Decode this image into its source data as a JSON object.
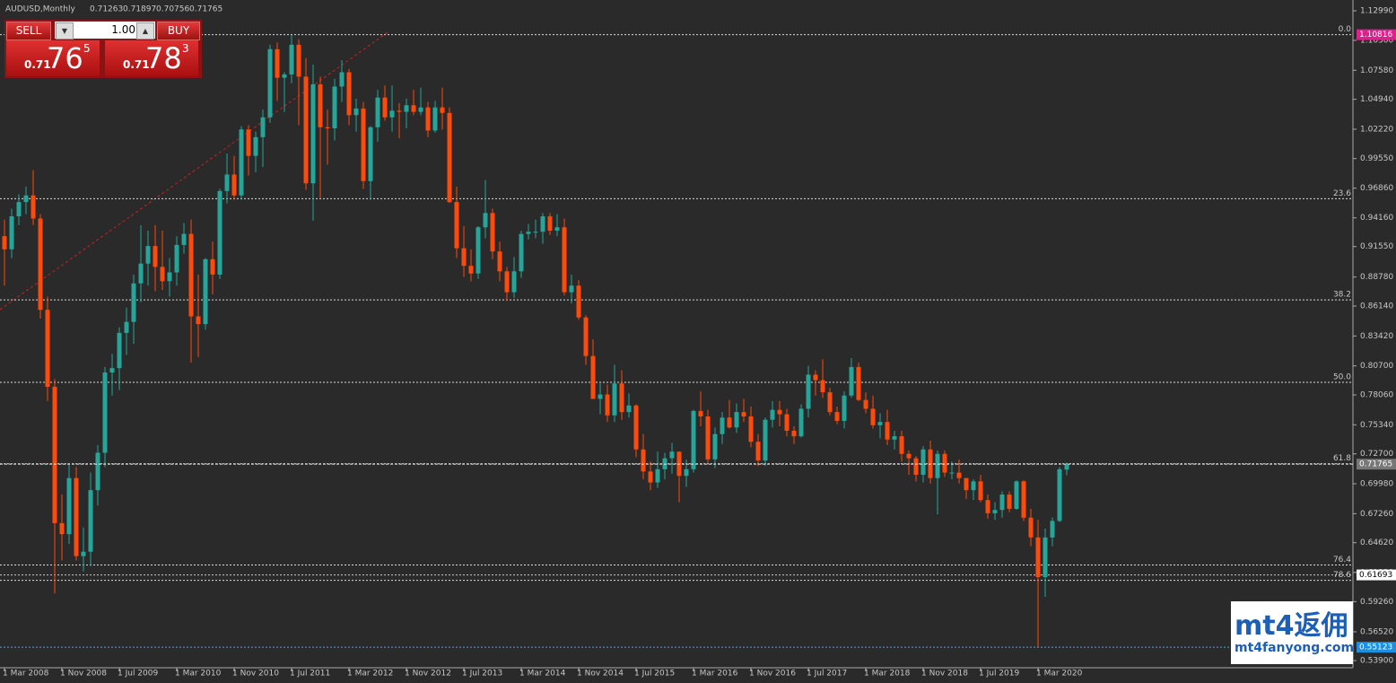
{
  "chart_data": {
    "type": "candlestick",
    "title": "AUDUSD,Monthly",
    "up_color": "#26a69a",
    "down_color": "#ff4a0a",
    "ylim": [
      0.5317,
      1.1397
    ],
    "yticks": [
      {
        "value": 1.1299,
        "label": "1.12990"
      },
      {
        "value": 1.103,
        "label": "1.10300"
      },
      {
        "value": 1.0758,
        "label": "1.07580"
      },
      {
        "value": 1.0494,
        "label": "1.04940"
      },
      {
        "value": 1.0222,
        "label": "1.02220"
      },
      {
        "value": 0.9955,
        "label": "0.99550"
      },
      {
        "value": 0.9686,
        "label": "0.96860"
      },
      {
        "value": 0.9416,
        "label": "0.94160"
      },
      {
        "value": 0.9155,
        "label": "0.91550"
      },
      {
        "value": 0.8878,
        "label": "0.88780"
      },
      {
        "value": 0.8614,
        "label": "0.86140"
      },
      {
        "value": 0.8342,
        "label": "0.83420"
      },
      {
        "value": 0.807,
        "label": "0.80700"
      },
      {
        "value": 0.7806,
        "label": "0.78060"
      },
      {
        "value": 0.7534,
        "label": "0.75340"
      },
      {
        "value": 0.727,
        "label": "0.72700"
      },
      {
        "value": 0.6998,
        "label": "0.69980"
      },
      {
        "value": 0.6726,
        "label": "0.67260"
      },
      {
        "value": 0.6462,
        "label": "0.64620"
      },
      {
        "value": 0.6192,
        "label": "0.61920"
      },
      {
        "value": 0.5926,
        "label": "0.59260"
      },
      {
        "value": 0.5652,
        "label": "0.56520"
      },
      {
        "value": 0.539,
        "label": "0.53900"
      }
    ],
    "categories": [
      "1 Mar 2008",
      null,
      null,
      null,
      null,
      null,
      null,
      null,
      "1 Nov 2008",
      null,
      null,
      null,
      null,
      null,
      null,
      null,
      "1 Jul 2009",
      null,
      null,
      null,
      null,
      null,
      null,
      null,
      "1 Mar 2010",
      null,
      null,
      null,
      null,
      null,
      null,
      null,
      "1 Nov 2010",
      null,
      null,
      null,
      null,
      null,
      null,
      null,
      "1 Jul 2011",
      null,
      null,
      null,
      null,
      null,
      null,
      null,
      "1 Mar 2012",
      null,
      null,
      null,
      null,
      null,
      null,
      null,
      "1 Nov 2012",
      null,
      null,
      null,
      null,
      null,
      null,
      null,
      "1 Jul 2013",
      null,
      null,
      null,
      null,
      null,
      null,
      null,
      "1 Mar 2014",
      null,
      null,
      null,
      null,
      null,
      null,
      null,
      "1 Nov 2014",
      null,
      null,
      null,
      null,
      null,
      null,
      null,
      "1 Jul 2015",
      null,
      null,
      null,
      null,
      null,
      null,
      null,
      "1 Mar 2016",
      null,
      null,
      null,
      null,
      null,
      null,
      null,
      "1 Nov 2016",
      null,
      null,
      null,
      null,
      null,
      null,
      null,
      "1 Jul 2017",
      null,
      null,
      null,
      null,
      null,
      null,
      null,
      "1 Mar 2018",
      null,
      null,
      null,
      null,
      null,
      null,
      null,
      "1 Nov 2018",
      null,
      null,
      null,
      null,
      null,
      null,
      null,
      "1 Jul 2019",
      null,
      null,
      null,
      null,
      null,
      null,
      null,
      "1 Mar 2020",
      null,
      null,
      null,
      null
    ],
    "open": [
      0.925,
      0.913,
      0.943,
      0.956,
      0.962,
      0.941,
      0.858,
      0.788,
      0.664,
      0.654,
      0.705,
      0.634,
      0.638,
      0.694,
      0.728,
      0.801,
      0.805,
      0.837,
      0.847,
      0.882,
      0.9,
      0.916,
      0.897,
      0.884,
      0.892,
      0.917,
      0.927,
      0.852,
      0.845,
      0.904,
      0.89,
      0.966,
      0.981,
      0.962,
      1.022,
      0.998,
      1.015,
      1.033,
      1.095,
      1.069,
      1.072,
      1.099,
      1.07,
      0.973,
      1.063,
      1.024,
      1.023,
      1.061,
      1.074,
      1.035,
      1.041,
      0.975,
      1.024,
      1.051,
      1.033,
      1.039,
      1.038,
      1.044,
      1.038,
      1.042,
      1.021,
      1.042,
      1.037,
      0.956,
      0.914,
      0.898,
      0.891,
      0.933,
      0.946,
      0.911,
      0.893,
      0.874,
      0.893,
      0.927,
      0.929,
      0.929,
      0.943,
      0.93,
      0.933,
      0.874,
      0.88,
      0.851,
      0.816,
      0.777,
      0.781,
      0.762,
      0.791,
      0.765,
      0.771,
      0.731,
      0.711,
      0.701,
      0.713,
      0.723,
      0.729,
      0.707,
      0.713,
      0.766,
      0.761,
      0.722,
      0.745,
      0.76,
      0.751,
      0.765,
      0.761,
      0.738,
      0.721,
      0.758,
      0.767,
      0.763,
      0.748,
      0.743,
      0.768,
      0.799,
      0.794,
      0.783,
      0.765,
      0.757,
      0.78,
      0.806,
      0.776,
      0.768,
      0.753,
      0.756,
      0.74,
      0.743,
      0.727,
      0.723,
      0.708,
      0.731,
      0.705,
      0.727,
      0.71,
      0.71,
      0.705,
      0.694,
      0.702,
      0.685,
      0.673,
      0.676,
      0.69,
      0.677,
      0.702,
      0.669,
      0.651,
      0.615,
      0.651,
      0.666,
      0.71263
    ],
    "high": [
      0.94,
      0.95,
      0.963,
      0.97,
      0.985,
      0.945,
      0.87,
      0.795,
      0.69,
      0.718,
      0.715,
      0.66,
      0.71,
      0.735,
      0.806,
      0.818,
      0.842,
      0.86,
      0.89,
      0.935,
      0.93,
      0.935,
      0.93,
      0.905,
      0.925,
      0.937,
      0.94,
      0.89,
      0.905,
      0.92,
      0.968,
      1.0,
      0.998,
      1.025,
      1.026,
      1.02,
      1.04,
      1.099,
      1.101,
      1.074,
      1.108,
      1.104,
      1.087,
      1.081,
      1.07,
      1.04,
      1.068,
      1.085,
      1.077,
      1.05,
      1.047,
      1.025,
      1.058,
      1.062,
      1.062,
      1.046,
      1.05,
      1.058,
      1.06,
      1.047,
      1.048,
      1.06,
      1.042,
      0.97,
      0.934,
      0.913,
      0.934,
      0.976,
      0.95,
      0.92,
      0.897,
      0.906,
      0.93,
      0.936,
      0.94,
      0.946,
      0.946,
      0.945,
      0.941,
      0.89,
      0.885,
      0.853,
      0.831,
      0.791,
      0.79,
      0.808,
      0.803,
      0.782,
      0.772,
      0.745,
      0.72,
      0.729,
      0.728,
      0.737,
      0.729,
      0.722,
      0.767,
      0.784,
      0.767,
      0.751,
      0.765,
      0.776,
      0.773,
      0.777,
      0.77,
      0.745,
      0.76,
      0.775,
      0.775,
      0.768,
      0.752,
      0.772,
      0.807,
      0.803,
      0.813,
      0.787,
      0.77,
      0.784,
      0.814,
      0.81,
      0.783,
      0.78,
      0.764,
      0.767,
      0.748,
      0.748,
      0.73,
      0.725,
      0.734,
      0.739,
      0.73,
      0.73,
      0.72,
      0.722,
      0.705,
      0.704,
      0.708,
      0.69,
      0.683,
      0.693,
      0.693,
      0.703,
      0.703,
      0.677,
      0.667,
      0.659,
      0.669,
      0.715,
      0.71897
    ],
    "low": [
      0.88,
      0.905,
      0.935,
      0.945,
      0.935,
      0.85,
      0.775,
      0.6,
      0.63,
      0.645,
      0.63,
      0.62,
      0.625,
      0.68,
      0.715,
      0.78,
      0.785,
      0.817,
      0.827,
      0.865,
      0.88,
      0.875,
      0.876,
      0.87,
      0.88,
      0.909,
      0.81,
      0.815,
      0.84,
      0.872,
      0.886,
      0.955,
      0.958,
      0.958,
      0.98,
      0.983,
      0.988,
      1.028,
      1.048,
      1.038,
      1.064,
      1.026,
      0.967,
      0.939,
      0.96,
      0.99,
      1.012,
      1.047,
      1.026,
      1.02,
      0.968,
      0.958,
      1.011,
      1.03,
      1.02,
      1.014,
      1.023,
      1.035,
      1.035,
      1.015,
      1.019,
      1.022,
      0.955,
      0.905,
      0.888,
      0.884,
      0.886,
      0.923,
      0.904,
      0.884,
      0.866,
      0.869,
      0.887,
      0.922,
      0.923,
      0.918,
      0.926,
      0.925,
      0.871,
      0.864,
      0.849,
      0.808,
      0.777,
      0.763,
      0.756,
      0.756,
      0.758,
      0.76,
      0.724,
      0.704,
      0.694,
      0.696,
      0.704,
      0.709,
      0.683,
      0.697,
      0.71,
      0.752,
      0.719,
      0.714,
      0.736,
      0.75,
      0.746,
      0.756,
      0.733,
      0.716,
      0.716,
      0.751,
      0.752,
      0.743,
      0.736,
      0.742,
      0.76,
      0.78,
      0.778,
      0.762,
      0.754,
      0.75,
      0.778,
      0.775,
      0.764,
      0.75,
      0.741,
      0.735,
      0.731,
      0.72,
      0.708,
      0.702,
      0.701,
      0.7,
      0.672,
      0.706,
      0.704,
      0.7,
      0.686,
      0.685,
      0.683,
      0.668,
      0.667,
      0.669,
      0.674,
      0.676,
      0.666,
      0.643,
      0.55123,
      0.597,
      0.643,
      0.665,
      0.70756
    ],
    "close": [
      0.913,
      0.943,
      0.956,
      0.962,
      0.941,
      0.858,
      0.788,
      0.664,
      0.654,
      0.705,
      0.634,
      0.638,
      0.694,
      0.728,
      0.801,
      0.805,
      0.837,
      0.847,
      0.882,
      0.9,
      0.916,
      0.897,
      0.884,
      0.892,
      0.917,
      0.927,
      0.852,
      0.845,
      0.904,
      0.89,
      0.966,
      0.981,
      0.962,
      1.022,
      0.998,
      1.015,
      1.033,
      1.095,
      1.069,
      1.072,
      1.099,
      1.07,
      0.973,
      1.063,
      1.024,
      1.023,
      1.061,
      1.074,
      1.035,
      1.041,
      0.975,
      1.024,
      1.051,
      1.033,
      1.039,
      1.038,
      1.044,
      1.038,
      1.042,
      1.021,
      1.042,
      1.037,
      0.956,
      0.914,
      0.898,
      0.891,
      0.933,
      0.946,
      0.911,
      0.893,
      0.874,
      0.893,
      0.927,
      0.929,
      0.929,
      0.943,
      0.93,
      0.933,
      0.874,
      0.88,
      0.851,
      0.816,
      0.777,
      0.781,
      0.762,
      0.791,
      0.765,
      0.771,
      0.731,
      0.711,
      0.701,
      0.713,
      0.723,
      0.729,
      0.707,
      0.713,
      0.766,
      0.761,
      0.722,
      0.745,
      0.76,
      0.751,
      0.765,
      0.761,
      0.738,
      0.721,
      0.758,
      0.767,
      0.763,
      0.748,
      0.743,
      0.768,
      0.799,
      0.794,
      0.783,
      0.765,
      0.757,
      0.78,
      0.806,
      0.776,
      0.768,
      0.753,
      0.756,
      0.74,
      0.743,
      0.727,
      0.723,
      0.708,
      0.731,
      0.705,
      0.727,
      0.71,
      0.71,
      0.705,
      0.694,
      0.702,
      0.685,
      0.673,
      0.676,
      0.69,
      0.677,
      0.702,
      0.669,
      0.651,
      0.615,
      0.651,
      0.666,
      0.713,
      0.71765
    ],
    "fib_levels": [
      {
        "level": "0.0",
        "price": 1.10816
      },
      {
        "level": "23.6",
        "price": 0.959
      },
      {
        "level": "38.2",
        "price": 0.867
      },
      {
        "level": "50.0",
        "price": 0.792
      },
      {
        "level": "61.8",
        "price": 0.718
      },
      {
        "level": "76.4",
        "price": 0.626
      },
      {
        "level": "78.6",
        "price": 0.612
      }
    ],
    "price_lines": [
      0.61693
    ]
  },
  "trade_panel": {
    "sell": "SELL",
    "buy": "BUY",
    "lot": "1.00",
    "bid_small": "0.71",
    "bid_big": "76",
    "bid_pip": "5",
    "ask_small": "0.71",
    "ask_big": "78",
    "ask_pip": "3"
  },
  "watermark": {
    "logo": "mt4返佣",
    "site": "mt4fanyong.com"
  }
}
